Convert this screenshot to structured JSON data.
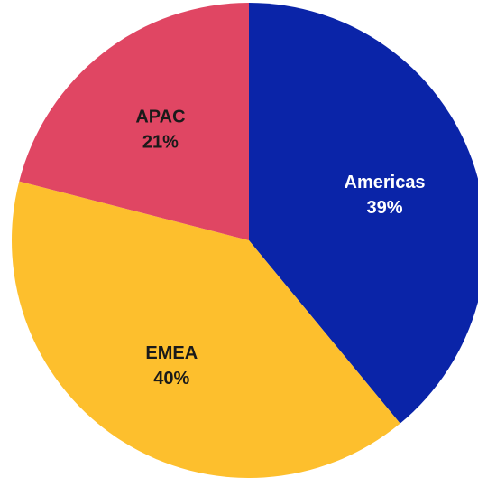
{
  "chart_data": {
    "type": "pie",
    "title": "",
    "start_angle_deg": 0,
    "direction": "clockwise",
    "slices": [
      {
        "label": "Americas",
        "value": 39,
        "value_label": "39%",
        "color": "#0a24a8",
        "label_color": "#ffffff"
      },
      {
        "label": "EMEA",
        "value": 40,
        "value_label": "40%",
        "color": "#fdbf2d",
        "label_color": "#1a1a1a"
      },
      {
        "label": "APAC",
        "value": 21,
        "value_label": "21%",
        "color": "#e04663",
        "label_color": "#1a1a1a"
      }
    ]
  }
}
